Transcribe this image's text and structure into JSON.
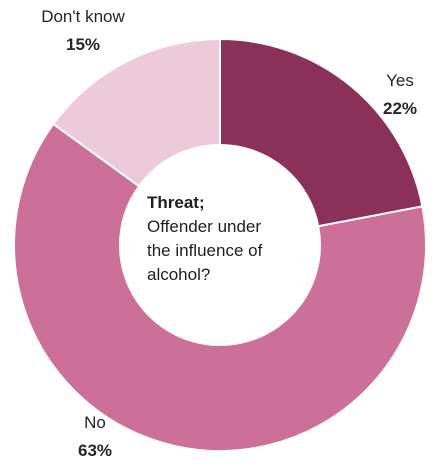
{
  "chart_data": {
    "type": "pie",
    "variant": "donut",
    "center_title": "Threat;",
    "center_lines": [
      "Offender under",
      "the influence of",
      "alcohol?"
    ],
    "slices": [
      {
        "label": "Yes",
        "value": 22,
        "value_label": "22%",
        "color": "#8b3059"
      },
      {
        "label": "No",
        "value": 63,
        "value_label": "63%",
        "color": "#cc7099"
      },
      {
        "label": "Don't know",
        "value": 15,
        "value_label": "15%",
        "color": "#eccad9"
      }
    ],
    "legend": "none"
  }
}
